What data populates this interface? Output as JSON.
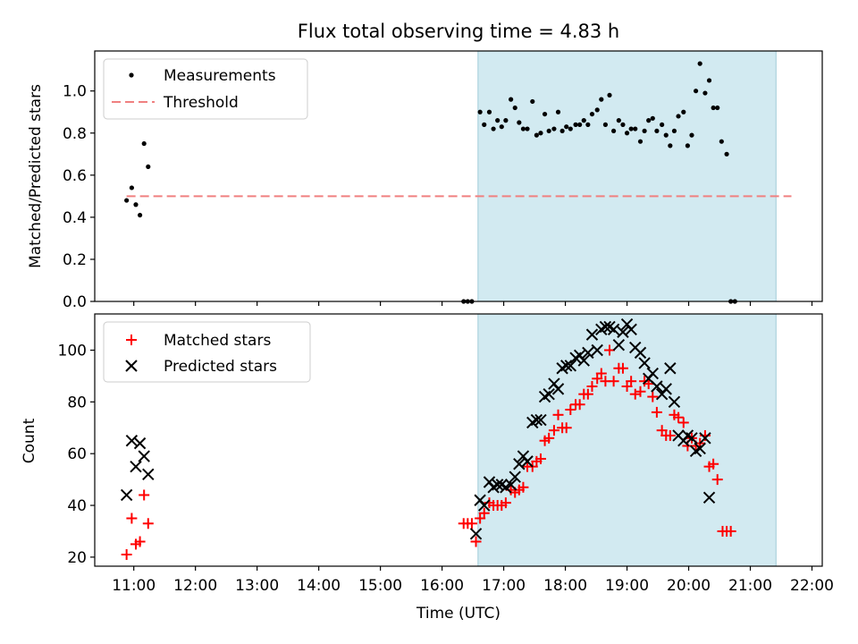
{
  "figure": {
    "title": "Flux total observing time = 4.83 h"
  },
  "chart_data": [
    {
      "type": "scatter",
      "xlabel": "",
      "ylabel": "Matched/Predicted stars",
      "xlim": [
        "10:22",
        "22:10"
      ],
      "ylim": [
        0,
        1.19
      ],
      "yticks": [
        0.0,
        0.2,
        0.4,
        0.6,
        0.8,
        1.0
      ],
      "shaded_span": {
        "start": "16:35",
        "end": "21:25",
        "color": "#add8e6"
      },
      "legend": {
        "placement": "upper-left",
        "entries": [
          "Measurements",
          "Threshold"
        ]
      },
      "series": [
        {
          "name": "Measurements",
          "marker": "dot",
          "color": "#000000",
          "points": [
            [
              "10:53",
              0.48
            ],
            [
              "10:58",
              0.54
            ],
            [
              "11:02",
              0.46
            ],
            [
              "11:06",
              0.41
            ],
            [
              "11:10",
              0.75
            ],
            [
              "11:14",
              0.64
            ],
            [
              "16:21",
              0.0
            ],
            [
              "16:25",
              0.0
            ],
            [
              "16:29",
              0.0
            ],
            [
              "16:37",
              0.9
            ],
            [
              "16:41",
              0.84
            ],
            [
              "16:46",
              0.9
            ],
            [
              "16:50",
              0.82
            ],
            [
              "16:54",
              0.86
            ],
            [
              "16:58",
              0.83
            ],
            [
              "17:02",
              0.86
            ],
            [
              "17:07",
              0.96
            ],
            [
              "17:11",
              0.92
            ],
            [
              "17:15",
              0.85
            ],
            [
              "17:19",
              0.82
            ],
            [
              "17:23",
              0.82
            ],
            [
              "17:28",
              0.95
            ],
            [
              "17:32",
              0.79
            ],
            [
              "17:36",
              0.8
            ],
            [
              "17:40",
              0.89
            ],
            [
              "17:44",
              0.81
            ],
            [
              "17:49",
              0.82
            ],
            [
              "17:53",
              0.9
            ],
            [
              "17:57",
              0.81
            ],
            [
              "18:01",
              0.83
            ],
            [
              "18:05",
              0.82
            ],
            [
              "18:10",
              0.84
            ],
            [
              "18:14",
              0.84
            ],
            [
              "18:18",
              0.86
            ],
            [
              "18:22",
              0.84
            ],
            [
              "18:26",
              0.89
            ],
            [
              "18:31",
              0.91
            ],
            [
              "18:35",
              0.96
            ],
            [
              "18:39",
              0.84
            ],
            [
              "18:43",
              0.98
            ],
            [
              "18:47",
              0.81
            ],
            [
              "18:52",
              0.86
            ],
            [
              "18:56",
              0.84
            ],
            [
              "19:00",
              0.8
            ],
            [
              "19:04",
              0.82
            ],
            [
              "19:08",
              0.82
            ],
            [
              "19:13",
              0.76
            ],
            [
              "19:17",
              0.81
            ],
            [
              "19:21",
              0.86
            ],
            [
              "19:25",
              0.87
            ],
            [
              "19:29",
              0.81
            ],
            [
              "19:34",
              0.84
            ],
            [
              "19:38",
              0.79
            ],
            [
              "19:42",
              0.74
            ],
            [
              "19:46",
              0.81
            ],
            [
              "19:50",
              0.88
            ],
            [
              "19:55",
              0.9
            ],
            [
              "19:59",
              0.74
            ],
            [
              "20:03",
              0.79
            ],
            [
              "20:07",
              1.0
            ],
            [
              "20:11",
              1.13
            ],
            [
              "20:16",
              0.99
            ],
            [
              "20:20",
              1.05
            ],
            [
              "20:24",
              0.92
            ],
            [
              "20:28",
              0.92
            ],
            [
              "20:32",
              0.76
            ],
            [
              "20:37",
              0.7
            ],
            [
              "20:41",
              0.0
            ],
            [
              "20:45",
              0.0
            ]
          ]
        },
        {
          "name": "Threshold",
          "marker": "dashed-line",
          "color": "#f08080",
          "points": [
            [
              "10:53",
              0.5
            ],
            [
              "21:40",
              0.5
            ]
          ]
        }
      ]
    },
    {
      "type": "scatter",
      "xlabel": "Time (UTC)",
      "ylabel": "Count",
      "xlim": [
        "10:22",
        "22:10"
      ],
      "ylim": [
        16.5,
        114
      ],
      "yticks": [
        20,
        40,
        60,
        80,
        100
      ],
      "xticks": [
        "11:00",
        "12:00",
        "13:00",
        "14:00",
        "15:00",
        "16:00",
        "17:00",
        "18:00",
        "19:00",
        "20:00",
        "21:00",
        "22:00"
      ],
      "shaded_span": {
        "start": "16:35",
        "end": "21:25",
        "color": "#add8e6"
      },
      "legend": {
        "placement": "upper-left",
        "entries": [
          "Matched stars",
          "Predicted stars"
        ]
      },
      "series": [
        {
          "name": "Matched stars",
          "marker": "plus",
          "color": "#ff0000",
          "points": [
            [
              "10:53",
              21
            ],
            [
              "10:58",
              35
            ],
            [
              "11:02",
              25
            ],
            [
              "11:06",
              26
            ],
            [
              "11:10",
              44
            ],
            [
              "11:14",
              33
            ],
            [
              "16:21",
              33
            ],
            [
              "16:25",
              33
            ],
            [
              "16:29",
              33
            ],
            [
              "16:33",
              26
            ],
            [
              "16:37",
              35
            ],
            [
              "16:41",
              37
            ],
            [
              "16:46",
              41
            ],
            [
              "16:50",
              40
            ],
            [
              "16:54",
              40
            ],
            [
              "16:58",
              40
            ],
            [
              "17:02",
              41
            ],
            [
              "17:07",
              46
            ],
            [
              "17:11",
              45
            ],
            [
              "17:15",
              46
            ],
            [
              "17:19",
              47
            ],
            [
              "17:23",
              55
            ],
            [
              "17:28",
              55
            ],
            [
              "17:32",
              57
            ],
            [
              "17:36",
              58
            ],
            [
              "17:40",
              65
            ],
            [
              "17:44",
              66
            ],
            [
              "17:49",
              69
            ],
            [
              "17:53",
              75
            ],
            [
              "17:57",
              70
            ],
            [
              "18:01",
              70
            ],
            [
              "18:05",
              77
            ],
            [
              "18:10",
              79
            ],
            [
              "18:14",
              79
            ],
            [
              "18:18",
              83
            ],
            [
              "18:22",
              83
            ],
            [
              "18:26",
              86
            ],
            [
              "18:31",
              89
            ],
            [
              "18:35",
              91
            ],
            [
              "18:39",
              88
            ],
            [
              "18:43",
              100
            ],
            [
              "18:47",
              88
            ],
            [
              "18:52",
              93
            ],
            [
              "18:56",
              93
            ],
            [
              "19:00",
              86
            ],
            [
              "19:04",
              88
            ],
            [
              "19:08",
              83
            ],
            [
              "19:13",
              84
            ],
            [
              "19:17",
              88
            ],
            [
              "19:21",
              87
            ],
            [
              "19:25",
              82
            ],
            [
              "19:29",
              76
            ],
            [
              "19:34",
              69
            ],
            [
              "19:38",
              67
            ],
            [
              "19:42",
              67
            ],
            [
              "19:46",
              75
            ],
            [
              "19:50",
              74
            ],
            [
              "19:55",
              72
            ],
            [
              "19:59",
              63
            ],
            [
              "20:03",
              66
            ],
            [
              "20:07",
              63
            ],
            [
              "20:11",
              64
            ],
            [
              "20:16",
              67
            ],
            [
              "20:20",
              55
            ],
            [
              "20:24",
              56
            ],
            [
              "20:28",
              50
            ],
            [
              "20:33",
              30
            ],
            [
              "20:37",
              30
            ],
            [
              "20:41",
              30
            ]
          ]
        },
        {
          "name": "Predicted stars",
          "marker": "x",
          "color": "#000000",
          "points": [
            [
              "10:53",
              44
            ],
            [
              "10:58",
              65
            ],
            [
              "11:02",
              55
            ],
            [
              "11:06",
              64
            ],
            [
              "11:10",
              59
            ],
            [
              "11:14",
              52
            ],
            [
              "16:33",
              29
            ],
            [
              "16:37",
              42
            ],
            [
              "16:41",
              40
            ],
            [
              "16:46",
              49
            ],
            [
              "16:50",
              47
            ],
            [
              "16:54",
              48
            ],
            [
              "16:58",
              48
            ],
            [
              "17:02",
              47
            ],
            [
              "17:07",
              48
            ],
            [
              "17:11",
              51
            ],
            [
              "17:15",
              56
            ],
            [
              "17:19",
              59
            ],
            [
              "17:23",
              57
            ],
            [
              "17:28",
              72
            ],
            [
              "17:32",
              73
            ],
            [
              "17:36",
              73
            ],
            [
              "17:40",
              82
            ],
            [
              "17:44",
              83
            ],
            [
              "17:49",
              87
            ],
            [
              "17:53",
              85
            ],
            [
              "17:57",
              93
            ],
            [
              "18:01",
              94
            ],
            [
              "18:05",
              94
            ],
            [
              "18:10",
              97
            ],
            [
              "18:14",
              98
            ],
            [
              "18:18",
              96
            ],
            [
              "18:22",
              99
            ],
            [
              "18:26",
              106
            ],
            [
              "18:31",
              100
            ],
            [
              "18:35",
              108
            ],
            [
              "18:39",
              109
            ],
            [
              "18:43",
              109
            ],
            [
              "18:47",
              108
            ],
            [
              "18:52",
              102
            ],
            [
              "18:56",
              107
            ],
            [
              "19:00",
              110
            ],
            [
              "19:04",
              108
            ],
            [
              "19:08",
              101
            ],
            [
              "19:13",
              99
            ],
            [
              "19:17",
              95
            ],
            [
              "19:21",
              89
            ],
            [
              "19:25",
              91
            ],
            [
              "19:29",
              86
            ],
            [
              "19:34",
              83
            ],
            [
              "19:38",
              85
            ],
            [
              "19:42",
              93
            ],
            [
              "19:46",
              80
            ],
            [
              "19:50",
              67
            ],
            [
              "19:55",
              65
            ],
            [
              "19:59",
              67
            ],
            [
              "20:03",
              66
            ],
            [
              "20:07",
              61
            ],
            [
              "20:11",
              62
            ],
            [
              "20:16",
              66
            ],
            [
              "20:20",
              43
            ]
          ]
        }
      ]
    }
  ]
}
